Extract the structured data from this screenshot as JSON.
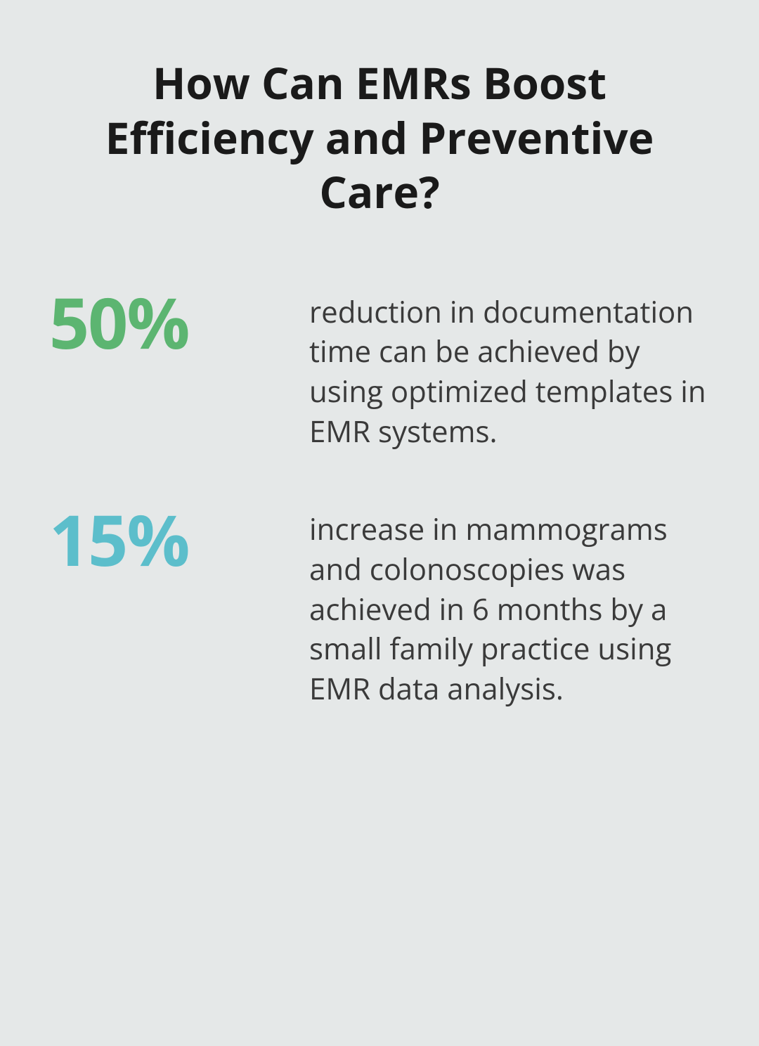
{
  "title": "How Can EMRs Boost Efficiency and Preventive Care?",
  "background_color": "#e5e8e8",
  "title_color": "#1a1a1a",
  "title_fontsize": 62,
  "title_fontweight": 700,
  "stats": [
    {
      "value": "50%",
      "value_color": "#5cb571",
      "value_fontsize": 100,
      "value_fontweight": 700,
      "description": "reduction in documentation time can be achieved by using optimized templates in EMR systems.",
      "description_color": "#3a3a3a",
      "description_fontsize": 42
    },
    {
      "value": "15%",
      "value_color": "#5cbecb",
      "value_fontsize": 100,
      "value_fontweight": 700,
      "description": "increase in mammograms and colonoscopies was achieved in 6 months by a small family practice using EMR data analysis.",
      "description_color": "#3a3a3a",
      "description_fontsize": 42
    }
  ]
}
